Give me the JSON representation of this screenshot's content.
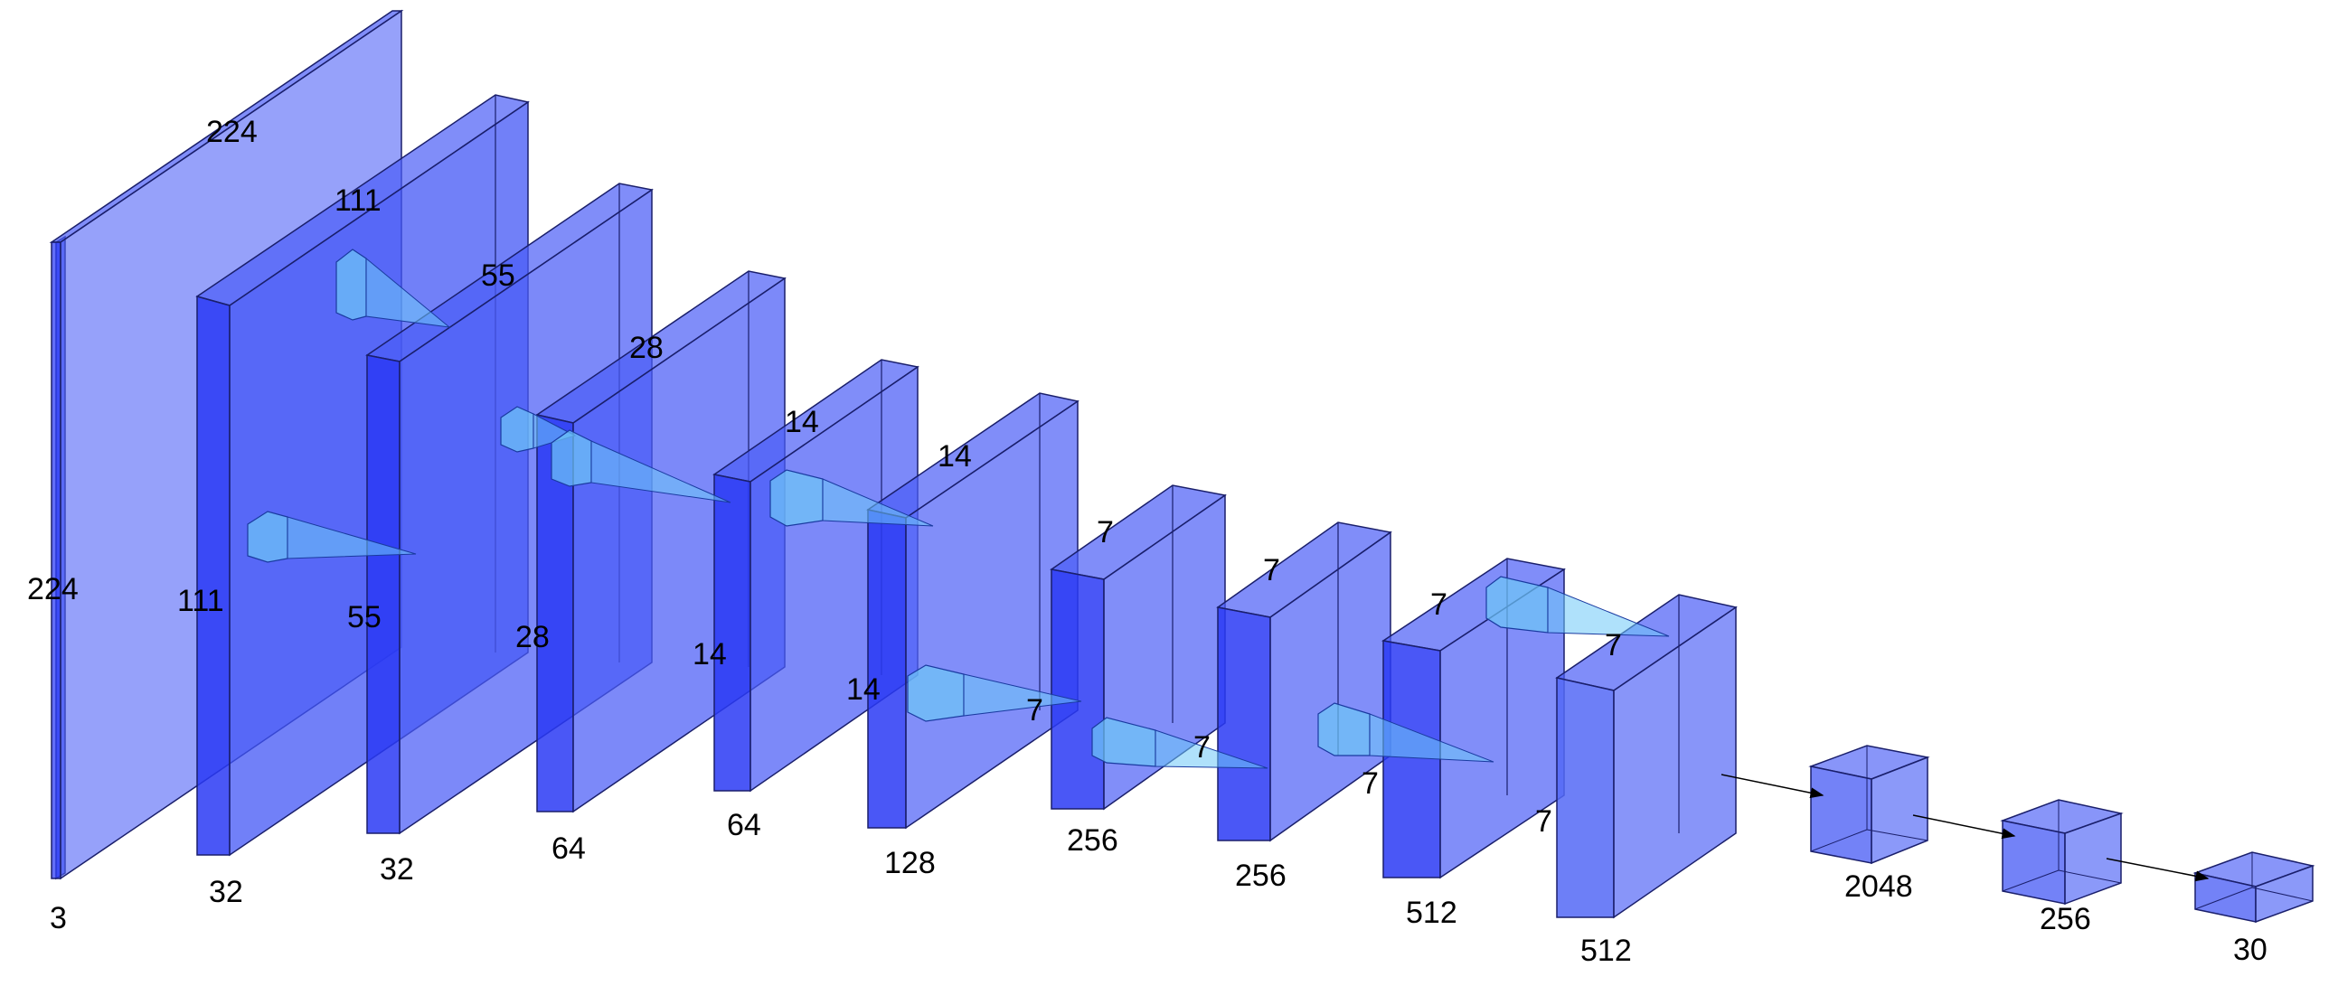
{
  "diagram": {
    "colors": {
      "layer_front": "#2d3df5",
      "layer_side": "#3446f2",
      "layer_top": "#4a5cf6",
      "kernel": "#6ec8f7",
      "edge": "#1a1f6b",
      "arrow": "#000000"
    },
    "layers": [
      {
        "name": "input",
        "depth_label": "3",
        "height_label": "224",
        "width_label": "224"
      },
      {
        "name": "conv1",
        "depth_label": "32",
        "height_label": "111",
        "width_label": "111"
      },
      {
        "name": "conv2",
        "depth_label": "32",
        "height_label": "55",
        "width_label": "55"
      },
      {
        "name": "conv3",
        "depth_label": "64",
        "height_label": "28",
        "width_label": "28"
      },
      {
        "name": "conv4",
        "depth_label": "64",
        "height_label": "14",
        "width_label": "14"
      },
      {
        "name": "conv5",
        "depth_label": "128",
        "height_label": "14",
        "width_label": "14"
      },
      {
        "name": "conv6",
        "depth_label": "256",
        "height_label": "7",
        "width_label": "7"
      },
      {
        "name": "conv7",
        "depth_label": "256",
        "height_label": "7",
        "width_label": "7"
      },
      {
        "name": "conv8",
        "depth_label": "512",
        "height_label": "7",
        "width_label": "7"
      },
      {
        "name": "conv9",
        "depth_label": "512",
        "height_label": "7",
        "width_label": "7"
      },
      {
        "name": "dense1",
        "depth_label": "2048"
      },
      {
        "name": "dense2",
        "depth_label": "256"
      },
      {
        "name": "output",
        "depth_label": "30"
      }
    ]
  }
}
